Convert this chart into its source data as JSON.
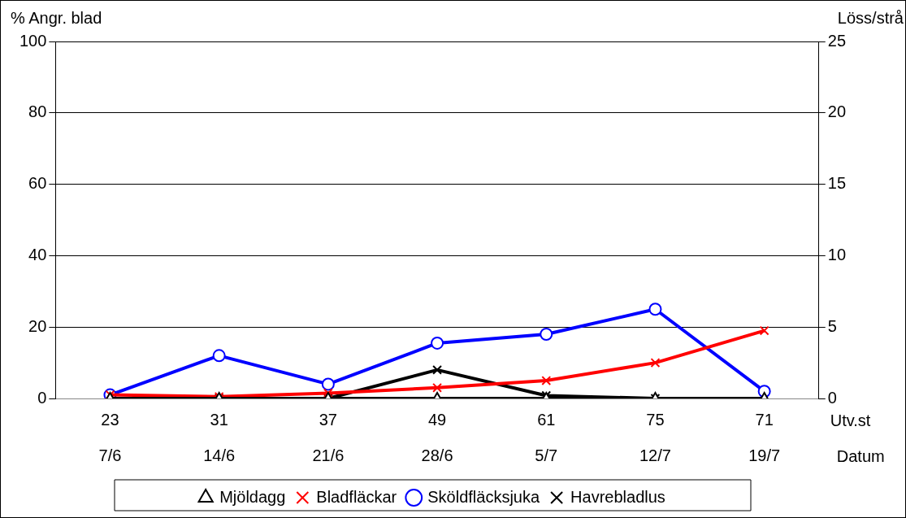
{
  "chart_data": {
    "type": "line",
    "categories": [
      "23\n7/6",
      "31\n14/6",
      "37\n21/6",
      "49\n28/6",
      "61\n5/7",
      "75\n12/7",
      "71\n19/7"
    ],
    "series": [
      {
        "name": "Mjöldagg",
        "color": "#000000",
        "marker": "triangle",
        "values": [
          0,
          0,
          0,
          0,
          0,
          0,
          0
        ]
      },
      {
        "name": "Bladfläckar",
        "color": "#ff0000",
        "marker": "cross",
        "values": [
          1,
          0.5,
          1.5,
          3,
          5,
          10,
          19
        ]
      },
      {
        "name": "Sköldfläcksjuka",
        "color": "#0000ff",
        "marker": "circle",
        "values": [
          1,
          12,
          4,
          15.5,
          18,
          25,
          2
        ]
      },
      {
        "name": "Havrebladlus",
        "color": "#000000",
        "marker": "cross",
        "axis": "y2",
        "values": [
          0,
          0,
          0,
          2,
          0.2,
          0,
          0
        ]
      }
    ],
    "ylabel": "% Angr. blad",
    "y2label": "Löss/strå",
    "ylim": [
      0,
      100
    ],
    "yticks": [
      0,
      20,
      40,
      60,
      80,
      100
    ],
    "y2lim": [
      0,
      25
    ],
    "y2ticks": [
      0,
      5,
      10,
      15,
      20,
      25
    ],
    "grid": "y",
    "legend": "bottom",
    "annotations": [
      "Utv.st",
      "Datum"
    ]
  }
}
